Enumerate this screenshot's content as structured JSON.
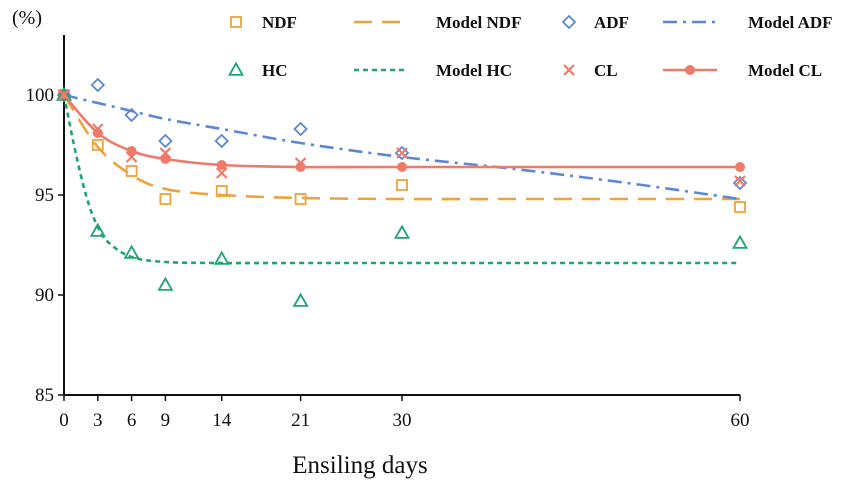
{
  "chart_data": {
    "type": "scatter",
    "title": "",
    "ylabel": "(%)",
    "xlabel": "Ensiling days",
    "xlim": [
      0,
      60
    ],
    "ylim": [
      85,
      103
    ],
    "x_ticks": [
      0,
      3,
      6,
      9,
      14,
      21,
      30,
      60
    ],
    "y_ticks": [
      85,
      90,
      95,
      100
    ],
    "grid": false,
    "series": [
      {
        "name": "NDF",
        "kind": "points",
        "marker": "square",
        "color": "#EDA33A",
        "x": [
          0,
          3,
          6,
          9,
          14,
          21,
          30,
          60
        ],
        "values": [
          100,
          97.5,
          96.2,
          94.8,
          95.2,
          94.8,
          95.5,
          94.4
        ]
      },
      {
        "name": "Model NDF",
        "kind": "line",
        "dash": "long",
        "color": "#EDA33A",
        "x": [
          0,
          3,
          6,
          9,
          14,
          21,
          30,
          40,
          50,
          60
        ],
        "values": [
          100,
          97.4,
          96.0,
          95.3,
          95.0,
          94.85,
          94.8,
          94.8,
          94.8,
          94.8
        ]
      },
      {
        "name": "ADF",
        "kind": "points",
        "marker": "diamond",
        "color": "#5B87D9",
        "x": [
          0,
          3,
          6,
          9,
          14,
          21,
          30,
          60
        ],
        "values": [
          100,
          100.5,
          99.0,
          97.7,
          97.7,
          98.3,
          97.1,
          95.6
        ]
      },
      {
        "name": "Model ADF",
        "kind": "line",
        "dash": "dashdot",
        "color": "#5B87D9",
        "x": [
          0,
          3,
          6,
          9,
          14,
          21,
          30,
          40,
          50,
          60
        ],
        "values": [
          100,
          99.6,
          99.2,
          98.8,
          98.3,
          97.6,
          96.9,
          96.3,
          95.6,
          94.8
        ]
      },
      {
        "name": "HC",
        "kind": "points",
        "marker": "triangle",
        "color": "#1EA56E",
        "x": [
          0,
          3,
          6,
          9,
          14,
          21,
          30,
          60
        ],
        "values": [
          100,
          93.2,
          92.1,
          90.5,
          91.8,
          89.7,
          93.1,
          92.6
        ]
      },
      {
        "name": "Model HC",
        "kind": "line",
        "dash": "short",
        "color": "#1EA56E",
        "x": [
          0,
          1,
          2,
          3,
          4,
          6,
          9,
          14,
          21,
          30,
          60
        ],
        "values": [
          100,
          97.2,
          94.9,
          93.4,
          92.6,
          91.9,
          91.65,
          91.6,
          91.6,
          91.6,
          91.6
        ]
      },
      {
        "name": "CL",
        "kind": "points",
        "marker": "x",
        "color": "#F07A6A",
        "x": [
          0,
          3,
          6,
          9,
          14,
          21,
          30,
          60
        ],
        "values": [
          100,
          98.3,
          96.9,
          97.1,
          96.1,
          96.6,
          97.1,
          95.7
        ]
      },
      {
        "name": "Model CL",
        "kind": "line",
        "dash": "solid",
        "marker": "circle",
        "color": "#F07A6A",
        "x": [
          0,
          3,
          6,
          9,
          14,
          21,
          30,
          60
        ],
        "values": [
          100,
          98.1,
          97.2,
          96.8,
          96.5,
          96.4,
          96.4,
          96.4
        ]
      }
    ],
    "legend": {
      "placement": "top",
      "rows": [
        [
          "NDF",
          "Model NDF",
          "ADF",
          "Model ADF"
        ],
        [
          "HC",
          "Model HC",
          "CL",
          "Model CL"
        ]
      ]
    }
  }
}
